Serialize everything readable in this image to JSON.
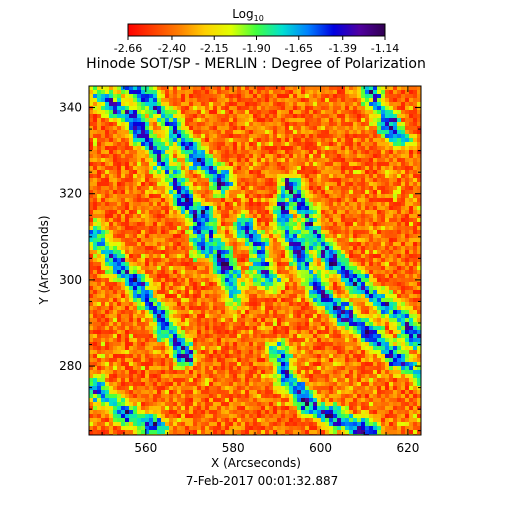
{
  "chart_data": {
    "type": "heatmap",
    "title": "Hinode SOT/SP - MERLIN : Degree of Polarization",
    "colorbar": {
      "label": "Log",
      "label_subscript": "10",
      "ticks": [
        "-2.66",
        "-2.40",
        "-2.15",
        "-1.90",
        "-1.65",
        "-1.39",
        "-1.14"
      ],
      "range": [
        -2.66,
        -1.14
      ],
      "colormap": [
        "#ff0000",
        "#ff4000",
        "#ff8000",
        "#ffd000",
        "#e0ff00",
        "#40ff40",
        "#00e0d0",
        "#0080ff",
        "#0000e0",
        "#5000a0",
        "#300050"
      ]
    },
    "xlabel": "X (Arcseconds)",
    "ylabel": "Y (Arcseconds)",
    "xlim": [
      547,
      623
    ],
    "ylim": [
      264,
      345
    ],
    "xticks": [
      560,
      580,
      600,
      620
    ],
    "yticks": [
      280,
      300,
      320,
      340
    ],
    "timestamp": "7-Feb-2017 00:01:32.887",
    "background_level": "orange-red (about -2.5)",
    "network_level": "green to dark blue (about -1.9 to -1.3)",
    "network_lanes": [
      {
        "points": [
          [
            549,
            343
          ],
          [
            557,
            338
          ],
          [
            561,
            331
          ],
          [
            567,
            323
          ],
          [
            571,
            315
          ],
          [
            574,
            307
          ]
        ]
      },
      {
        "points": [
          [
            556,
            345
          ],
          [
            561,
            341
          ],
          [
            566,
            336
          ],
          [
            572,
            328
          ],
          [
            578,
            322
          ]
        ]
      },
      {
        "points": [
          [
            549,
            310
          ],
          [
            553,
            305
          ],
          [
            557,
            300
          ],
          [
            561,
            294
          ],
          [
            566,
            288
          ],
          [
            569,
            282
          ]
        ]
      },
      {
        "points": [
          [
            573,
            315
          ],
          [
            576,
            308
          ],
          [
            579,
            302
          ],
          [
            580,
            296
          ]
        ]
      },
      {
        "points": [
          [
            591,
            317
          ],
          [
            594,
            309
          ],
          [
            598,
            300
          ],
          [
            603,
            294
          ],
          [
            610,
            288
          ],
          [
            617,
            282
          ],
          [
            623,
            278
          ]
        ]
      },
      {
        "points": [
          [
            593,
            322
          ],
          [
            597,
            314
          ],
          [
            601,
            307
          ],
          [
            606,
            301
          ],
          [
            612,
            296
          ],
          [
            618,
            292
          ],
          [
            623,
            286
          ]
        ]
      },
      {
        "points": [
          [
            590,
            283
          ],
          [
            593,
            277
          ],
          [
            597,
            271
          ],
          [
            602,
            268
          ],
          [
            607,
            266
          ],
          [
            612,
            264
          ]
        ]
      },
      {
        "points": [
          [
            548,
            275
          ],
          [
            553,
            271
          ],
          [
            558,
            268
          ],
          [
            563,
            266
          ]
        ]
      },
      {
        "points": [
          [
            611,
            345
          ],
          [
            614,
            339
          ],
          [
            618,
            333
          ]
        ]
      },
      {
        "points": [
          [
            583,
            312
          ],
          [
            586,
            306
          ],
          [
            588,
            300
          ]
        ]
      }
    ]
  }
}
